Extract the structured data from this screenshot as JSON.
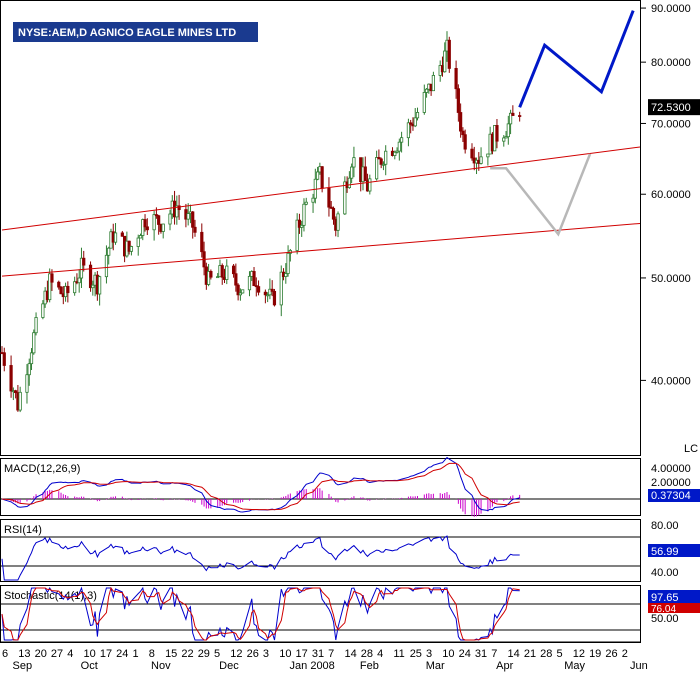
{
  "title": "NYSE:AEM,D AGNICO EAGLE MINES LTD",
  "price_axis": {
    "ticks": [
      {
        "value": 90,
        "label": "90.0000"
      },
      {
        "value": 80,
        "label": "80.0000"
      },
      {
        "value": 70,
        "label": "70.0000"
      },
      {
        "value": 60,
        "label": "60.0000"
      },
      {
        "value": 50,
        "label": "50.0000"
      },
      {
        "value": 40,
        "label": "40.0000"
      }
    ],
    "last_label": "72.5300",
    "last_value": 72.53,
    "scale": "log",
    "corner_label": "LC"
  },
  "date_axis": {
    "day_labels": [
      "6",
      "13",
      "20",
      "27",
      "4",
      "10",
      "17",
      "24",
      "1",
      "8",
      "15",
      "22",
      "29",
      "5",
      "12",
      "26",
      "3",
      "10",
      "17",
      "31",
      "7",
      "14",
      "28",
      "4",
      "11",
      "25",
      "3",
      "10",
      "24",
      "31",
      "7",
      "14",
      "21",
      "28",
      "5",
      "12",
      "19",
      "26",
      "2"
    ],
    "month_labels": [
      "Sep",
      "Oct",
      "Nov",
      "Dec",
      "Jan 2008",
      "Feb",
      "Mar",
      "Apr",
      "May",
      "Jun"
    ]
  },
  "macd": {
    "title": "MACD(12,26,9)",
    "ticks": [
      "4.00000",
      "2.00000"
    ],
    "last_label": "0.37304"
  },
  "rsi": {
    "title": "RSI(14)",
    "ticks": [
      "80.00",
      "40.00"
    ],
    "last_label": "56.99"
  },
  "stochastic": {
    "title": "Stochastic(14(1),3)",
    "last_label": "97.65",
    "last2_label": "76.04",
    "ticks": [
      "50.00"
    ]
  },
  "colors": {
    "title_bg": "#1a3a8f",
    "up_candle": "#2e7d32",
    "down_candle": "#8b0000",
    "trendline": "#d00000",
    "projection_up": "#0018c8",
    "projection_down": "#b8b8b8",
    "macd_line": "#0000cc",
    "signal_line": "#d00000",
    "histogram": "#cc00cc"
  },
  "chart_data": {
    "type": "candlestick",
    "ylim": [
      34,
      91
    ],
    "trendlines": [
      {
        "name": "upper",
        "x": [
          "2007-08-30",
          "2008-06-06"
        ],
        "y": [
          55.5,
          66.5
        ]
      },
      {
        "name": "lower",
        "x": [
          "2007-08-30",
          "2008-06-06"
        ],
        "y": [
          50.2,
          56.3
        ]
      }
    ],
    "projection_up": {
      "x": [
        "2008-04-14",
        "2008-04-25",
        "2008-05-20",
        "2008-06-03"
      ],
      "y": [
        72.5,
        83.0,
        75.0,
        89.5
      ]
    },
    "projection_down": {
      "x": [
        "2008-04-01",
        "2008-04-08",
        "2008-05-01",
        "2008-05-15"
      ],
      "y": [
        63.5,
        63.5,
        55.0,
        65.5
      ]
    },
    "weekly_closes": {
      "x": [
        "2007-08-30",
        "2007-09-06",
        "2007-09-13",
        "2007-09-20",
        "2007-09-27",
        "2007-10-04",
        "2007-10-11",
        "2007-10-18",
        "2007-10-25",
        "2007-11-01",
        "2007-11-08",
        "2007-11-15",
        "2007-11-22",
        "2007-11-29",
        "2007-12-06",
        "2007-12-13",
        "2007-12-20",
        "2007-12-27",
        "2008-01-03",
        "2008-01-10",
        "2008-01-17",
        "2008-01-24",
        "2008-01-31",
        "2008-02-07",
        "2008-02-14",
        "2008-02-21",
        "2008-02-28",
        "2008-03-06",
        "2008-03-13",
        "2008-03-20",
        "2008-03-27",
        "2008-04-03",
        "2008-04-10",
        "2008-04-14"
      ],
      "close": [
        42.5,
        38.0,
        44.0,
        49.5,
        48.0,
        51.0,
        49.5,
        55.0,
        53.0,
        57.0,
        56.5,
        58.5,
        56.0,
        49.5,
        50.5,
        49.0,
        50.0,
        47.5,
        52.0,
        58.0,
        62.5,
        56.0,
        65.0,
        61.0,
        65.5,
        67.5,
        71.0,
        76.0,
        82.0,
        68.0,
        65.0,
        68.0,
        70.0,
        72.53
      ]
    }
  }
}
